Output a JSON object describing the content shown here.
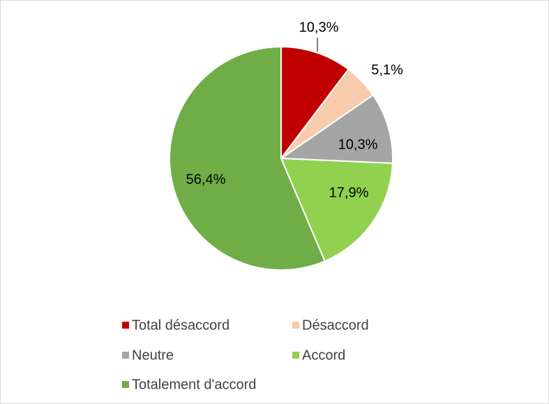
{
  "chart_data": {
    "type": "pie",
    "categories": [
      "Total désaccord",
      "Désaccord",
      "Neutre",
      "Accord",
      "Totalement d'accord"
    ],
    "values": [
      10.3,
      5.1,
      10.3,
      17.9,
      56.4
    ],
    "value_labels": [
      "10,3%",
      "5,1%",
      "10,3%",
      "17,9%",
      "56,4%"
    ],
    "colors": [
      "#c00000",
      "#f8cbad",
      "#a5a5a5",
      "#92d050",
      "#70ad47"
    ],
    "legend": "bottom"
  }
}
